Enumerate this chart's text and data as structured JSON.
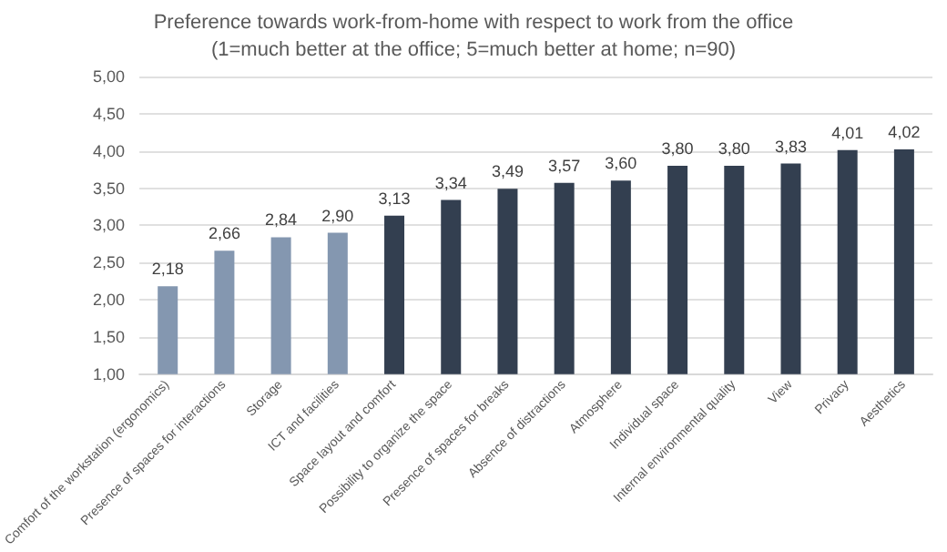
{
  "chart_data": {
    "type": "bar",
    "title": "Preference towards work-from-home with respect to work from the office",
    "subtitle": "(1=much better at the office; 5=much better at home; n=90)",
    "categories": [
      "Comfort of the workstation (ergonomics)",
      "Presence of spaces for interactions",
      "Storage",
      "ICT and facilities",
      "Space layout and comfort",
      "Possibility to organize the space",
      "Presence of spaces for breaks",
      "Absence of distractions",
      "Atmosphere",
      "Individual space",
      "Internal environmental quality",
      "View",
      "Privacy",
      "Aesthetics"
    ],
    "values": [
      2.18,
      2.66,
      2.84,
      2.9,
      3.13,
      3.34,
      3.49,
      3.57,
      3.6,
      3.8,
      3.8,
      3.83,
      4.01,
      4.02
    ],
    "value_labels": [
      "2,18",
      "2,66",
      "2,84",
      "2,90",
      "3,13",
      "3,34",
      "3,49",
      "3,57",
      "3,60",
      "3,80",
      "3,80",
      "3,83",
      "4,01",
      "4,02"
    ],
    "colors": [
      "#8497b0",
      "#8497b0",
      "#8497b0",
      "#8497b0",
      "#333f50",
      "#333f50",
      "#333f50",
      "#333f50",
      "#333f50",
      "#333f50",
      "#333f50",
      "#333f50",
      "#333f50",
      "#333f50"
    ],
    "ylim": [
      1,
      5
    ],
    "yticks": [
      {
        "value": 1,
        "label": "1,00"
      },
      {
        "value": 1.5,
        "label": "1,50"
      },
      {
        "value": 2,
        "label": "2,00"
      },
      {
        "value": 2.5,
        "label": "2,50"
      },
      {
        "value": 3,
        "label": "3,00"
      },
      {
        "value": 3.5,
        "label": "3,50"
      },
      {
        "value": 4,
        "label": "4,00"
      },
      {
        "value": 4.5,
        "label": "4,50"
      },
      {
        "value": 5,
        "label": "5,00"
      }
    ],
    "grid": "y"
  }
}
